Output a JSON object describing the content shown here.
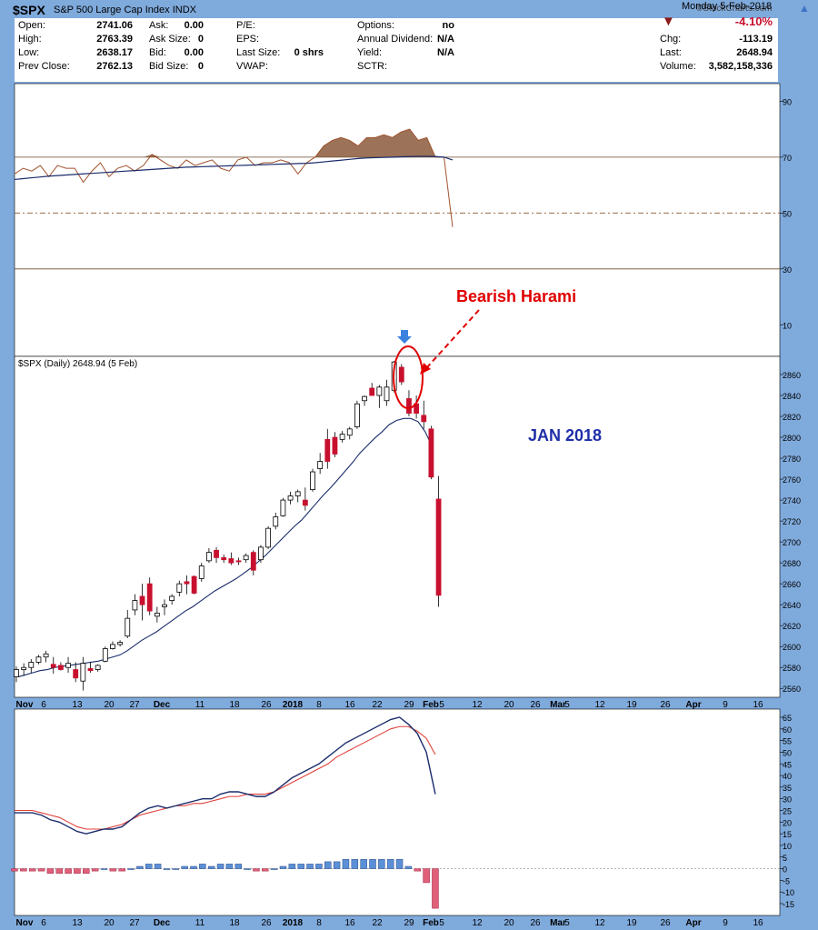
{
  "header": {
    "symbol": "$SPX",
    "name": "S&P 500 Large Cap Index",
    "exchange": "INDX",
    "watermark": "©StockCharts.com",
    "date": "Monday  5-Feb-2018"
  },
  "quote": {
    "open_label": "Open:",
    "open": "2741.06",
    "high_label": "High:",
    "high": "2763.39",
    "low_label": "Low:",
    "low": "2638.17",
    "prev_label": "Prev Close:",
    "prev": "2762.13",
    "ask_label": "Ask:",
    "ask": "0.00",
    "asksize_label": "Ask Size:",
    "asksize": "0",
    "bid_label": "Bid:",
    "bid": "0.00",
    "bidsize_label": "Bid Size:",
    "bidsize": "0",
    "pe_label": "P/E:",
    "eps_label": "EPS:",
    "lastsize_label": "Last Size:",
    "lastsize": "0 shrs",
    "vwap_label": "VWAP:",
    "options_label": "Options:",
    "options": "no",
    "div_label": "Annual Dividend:",
    "div": "N/A",
    "yield_label": "Yield:",
    "yield": "N/A",
    "sctr_label": "SCTR:",
    "pct": "-4.10%",
    "chg_label": "Chg:",
    "chg": "-113.19",
    "last_label": "Last:",
    "last": "2648.94",
    "vol_label": "Volume:",
    "volume": "3,582,158,336",
    "down_color": "#8b1a1a"
  },
  "annotations": {
    "harami": "Bearish Harami",
    "period": "JAN 2018",
    "price_legend": "$SPX (Daily) 2648.94 (5 Feb)"
  },
  "colors": {
    "up_candle": "#ffffff",
    "down_candle": "#c8102e",
    "ma_line": "#1a2c6b",
    "rsi_line": "#a0522d",
    "macd_line": "#1a2c6b",
    "signal_line": "#e0403a",
    "hist_pos": "#5b8fd6",
    "hist_neg": "#e0607a",
    "annotation_red": "#e00000",
    "annotation_blue": "#1f2fa8",
    "arrow_blue": "#3b82e0"
  },
  "chart_data": [
    {
      "type": "line",
      "ylim": [
        0,
        100
      ],
      "y_ticks": [
        "90",
        "70",
        "50",
        "30",
        "10"
      ],
      "reference_lines": [
        70,
        50,
        30
      ],
      "series": [
        {
          "values": [
            64,
            66,
            65,
            67,
            63,
            67,
            66,
            66,
            61,
            65,
            68,
            63,
            66,
            67,
            65,
            67,
            71,
            69,
            67,
            66,
            69,
            67,
            68,
            69,
            66,
            65,
            69,
            70,
            67,
            68,
            68,
            69,
            68,
            64,
            68,
            70,
            74,
            76,
            77,
            76,
            74,
            77,
            77,
            78,
            77,
            79,
            80,
            76,
            77,
            70,
            70,
            45
          ]
        },
        {
          "values": [
            62,
            62.3,
            62.6,
            62.9,
            63.2,
            63.4,
            63.6,
            63.8,
            64,
            64.2,
            64.4,
            64.6,
            64.8,
            65,
            65.2,
            65.4,
            65.6,
            65.8,
            66,
            66.2,
            66.4,
            66.5,
            66.6,
            66.7,
            66.8,
            66.9,
            67,
            67.1,
            67.2,
            67.3,
            67.4,
            67.5,
            67.6,
            67.7,
            67.8,
            68,
            68.3,
            68.6,
            68.9,
            69.2,
            69.5,
            69.7,
            69.8,
            69.9,
            70,
            70.1,
            70.2,
            70.3,
            70.3,
            70.2,
            70,
            69
          ]
        }
      ]
    },
    {
      "type": "candlestick",
      "ylim": [
        2553,
        2885
      ],
      "y_ticks": [
        "2860",
        "2840",
        "2820",
        "2800",
        "2780",
        "2760",
        "2740",
        "2720",
        "2700",
        "2680",
        "2660",
        "2640",
        "2620",
        "2600",
        "2580",
        "2560"
      ],
      "x_ticks": [
        "Nov",
        "6",
        "13",
        "20",
        "27",
        "Dec",
        "11",
        "18",
        "26",
        "2018",
        "8",
        "16",
        "22",
        "29",
        "Feb",
        "5",
        "12",
        "20",
        "26",
        "Mar",
        "5",
        "12",
        "19",
        "26",
        "Apr",
        "9",
        "16"
      ],
      "candles": [
        {
          "o": 2571,
          "h": 2581,
          "l": 2566,
          "c": 2578
        },
        {
          "o": 2578,
          "h": 2584,
          "l": 2572,
          "c": 2580
        },
        {
          "o": 2580,
          "h": 2588,
          "l": 2575,
          "c": 2585
        },
        {
          "o": 2585,
          "h": 2592,
          "l": 2583,
          "c": 2590
        },
        {
          "o": 2590,
          "h": 2596,
          "l": 2585,
          "c": 2593
        },
        {
          "o": 2583,
          "h": 2590,
          "l": 2574,
          "c": 2580
        },
        {
          "o": 2582,
          "h": 2585,
          "l": 2577,
          "c": 2578
        },
        {
          "o": 2580,
          "h": 2590,
          "l": 2575,
          "c": 2584
        },
        {
          "o": 2578,
          "h": 2585,
          "l": 2566,
          "c": 2570
        },
        {
          "o": 2567,
          "h": 2590,
          "l": 2558,
          "c": 2584
        },
        {
          "o": 2579,
          "h": 2585,
          "l": 2575,
          "c": 2577
        },
        {
          "o": 2578,
          "h": 2583,
          "l": 2576,
          "c": 2582
        },
        {
          "o": 2586,
          "h": 2600,
          "l": 2585,
          "c": 2598
        },
        {
          "o": 2598,
          "h": 2605,
          "l": 2597,
          "c": 2602
        },
        {
          "o": 2602,
          "h": 2606,
          "l": 2600,
          "c": 2604
        },
        {
          "o": 2610,
          "h": 2635,
          "l": 2608,
          "c": 2627
        },
        {
          "o": 2635,
          "h": 2650,
          "l": 2630,
          "c": 2644
        },
        {
          "o": 2648,
          "h": 2660,
          "l": 2625,
          "c": 2640
        },
        {
          "o": 2660,
          "h": 2666,
          "l": 2630,
          "c": 2634
        },
        {
          "o": 2629,
          "h": 2638,
          "l": 2623,
          "c": 2632
        },
        {
          "o": 2638,
          "h": 2645,
          "l": 2630,
          "c": 2640
        },
        {
          "o": 2644,
          "h": 2650,
          "l": 2640,
          "c": 2648
        },
        {
          "o": 2652,
          "h": 2663,
          "l": 2648,
          "c": 2660
        },
        {
          "o": 2662,
          "h": 2668,
          "l": 2650,
          "c": 2660
        },
        {
          "o": 2667,
          "h": 2668,
          "l": 2650,
          "c": 2651
        },
        {
          "o": 2665,
          "h": 2680,
          "l": 2662,
          "c": 2677
        },
        {
          "o": 2682,
          "h": 2694,
          "l": 2680,
          "c": 2690
        },
        {
          "o": 2692,
          "h": 2695,
          "l": 2680,
          "c": 2685
        },
        {
          "o": 2685,
          "h": 2688,
          "l": 2680,
          "c": 2683
        },
        {
          "o": 2684,
          "h": 2690,
          "l": 2678,
          "c": 2680
        },
        {
          "o": 2682,
          "h": 2685,
          "l": 2678,
          "c": 2681
        },
        {
          "o": 2683,
          "h": 2689,
          "l": 2680,
          "c": 2687
        },
        {
          "o": 2690,
          "h": 2692,
          "l": 2668,
          "c": 2673
        },
        {
          "o": 2683,
          "h": 2697,
          "l": 2680,
          "c": 2695
        },
        {
          "o": 2695,
          "h": 2715,
          "l": 2693,
          "c": 2713
        },
        {
          "o": 2715,
          "h": 2728,
          "l": 2712,
          "c": 2724
        },
        {
          "o": 2725,
          "h": 2742,
          "l": 2724,
          "c": 2740
        },
        {
          "o": 2740,
          "h": 2748,
          "l": 2736,
          "c": 2744
        },
        {
          "o": 2744,
          "h": 2750,
          "l": 2738,
          "c": 2748
        },
        {
          "o": 2740,
          "h": 2752,
          "l": 2730,
          "c": 2735
        },
        {
          "o": 2750,
          "h": 2770,
          "l": 2748,
          "c": 2767
        },
        {
          "o": 2770,
          "h": 2785,
          "l": 2765,
          "c": 2777
        },
        {
          "o": 2798,
          "h": 2808,
          "l": 2770,
          "c": 2777
        },
        {
          "o": 2800,
          "h": 2805,
          "l": 2781,
          "c": 2784
        },
        {
          "o": 2798,
          "h": 2806,
          "l": 2795,
          "c": 2803
        },
        {
          "o": 2802,
          "h": 2810,
          "l": 2798,
          "c": 2808
        },
        {
          "o": 2810,
          "h": 2835,
          "l": 2808,
          "c": 2832
        },
        {
          "o": 2835,
          "h": 2840,
          "l": 2830,
          "c": 2839
        },
        {
          "o": 2847,
          "h": 2852,
          "l": 2840,
          "c": 2840
        },
        {
          "o": 2840,
          "h": 2850,
          "l": 2828,
          "c": 2848
        },
        {
          "o": 2835,
          "h": 2855,
          "l": 2830,
          "c": 2848
        },
        {
          "o": 2845,
          "h": 2873,
          "l": 2843,
          "c": 2872
        },
        {
          "o": 2867,
          "h": 2870,
          "l": 2850,
          "c": 2853
        },
        {
          "o": 2837,
          "h": 2845,
          "l": 2820,
          "c": 2823
        },
        {
          "o": 2832,
          "h": 2840,
          "l": 2818,
          "c": 2823
        },
        {
          "o": 2821,
          "h": 2835,
          "l": 2808,
          "c": 2815
        },
        {
          "o": 2808,
          "h": 2811,
          "l": 2760,
          "c": 2762
        },
        {
          "o": 2741,
          "h": 2763,
          "l": 2638,
          "c": 2649
        }
      ],
      "ma": [
        2571,
        2573,
        2575,
        2577,
        2578,
        2580,
        2581,
        2582,
        2583,
        2584,
        2585,
        2586,
        2588,
        2590,
        2592,
        2596,
        2601,
        2606,
        2610,
        2614,
        2619,
        2624,
        2629,
        2634,
        2638,
        2643,
        2648,
        2653,
        2657,
        2661,
        2665,
        2670,
        2675,
        2681,
        2687,
        2694,
        2701,
        2708,
        2715,
        2721,
        2729,
        2737,
        2745,
        2752,
        2760,
        2768,
        2776,
        2785,
        2792,
        2799,
        2805,
        2812,
        2816,
        2818,
        2818,
        2815,
        2805,
        2790
      ]
    },
    {
      "type": "line",
      "ylim": [
        -18,
        67
      ],
      "y_ticks": [
        "65",
        "60",
        "55",
        "50",
        "45",
        "40",
        "35",
        "30",
        "25",
        "20",
        "15",
        "10",
        "5",
        "0",
        "-5",
        "-10",
        "-15"
      ],
      "x_ticks": [
        "Nov",
        "6",
        "13",
        "20",
        "27",
        "Dec",
        "11",
        "18",
        "26",
        "2018",
        "8",
        "16",
        "22",
        "29",
        "Feb",
        "5",
        "12",
        "20",
        "26",
        "Mar",
        "5",
        "12",
        "19",
        "26",
        "Apr",
        "9",
        "16"
      ],
      "series": [
        {
          "values": [
            24,
            24,
            24,
            23,
            21,
            20,
            18,
            16,
            15,
            16,
            17,
            17,
            18,
            21,
            24,
            26,
            27,
            26,
            27,
            28,
            29,
            30,
            30,
            32,
            33,
            33,
            32,
            31,
            31,
            33,
            36,
            39,
            41,
            43,
            45,
            48,
            51,
            54,
            56,
            58,
            60,
            62,
            64,
            65,
            62,
            58,
            50,
            32
          ]
        },
        {
          "values": [
            25,
            25,
            25,
            24,
            23,
            22,
            20,
            18,
            17,
            17,
            17,
            18,
            19,
            21,
            23,
            24,
            25,
            26,
            27,
            27,
            28,
            28,
            29,
            30,
            31,
            31,
            32,
            32,
            32,
            33,
            35,
            37,
            39,
            41,
            43,
            45,
            48,
            50,
            52,
            54,
            56,
            58,
            60,
            61,
            61,
            59,
            56,
            49
          ]
        },
        {
          "values": [
            -1,
            -1,
            -1,
            -1,
            -2,
            -2,
            -2,
            -2,
            -2,
            -1,
            0,
            -1,
            -1,
            0,
            1,
            2,
            2,
            0,
            0,
            1,
            1,
            2,
            1,
            2,
            2,
            2,
            0,
            -1,
            -1,
            0,
            1,
            2,
            2,
            2,
            2,
            3,
            3,
            4,
            4,
            4,
            4,
            4,
            4,
            4,
            1,
            -1,
            -6,
            -17
          ]
        }
      ]
    }
  ]
}
